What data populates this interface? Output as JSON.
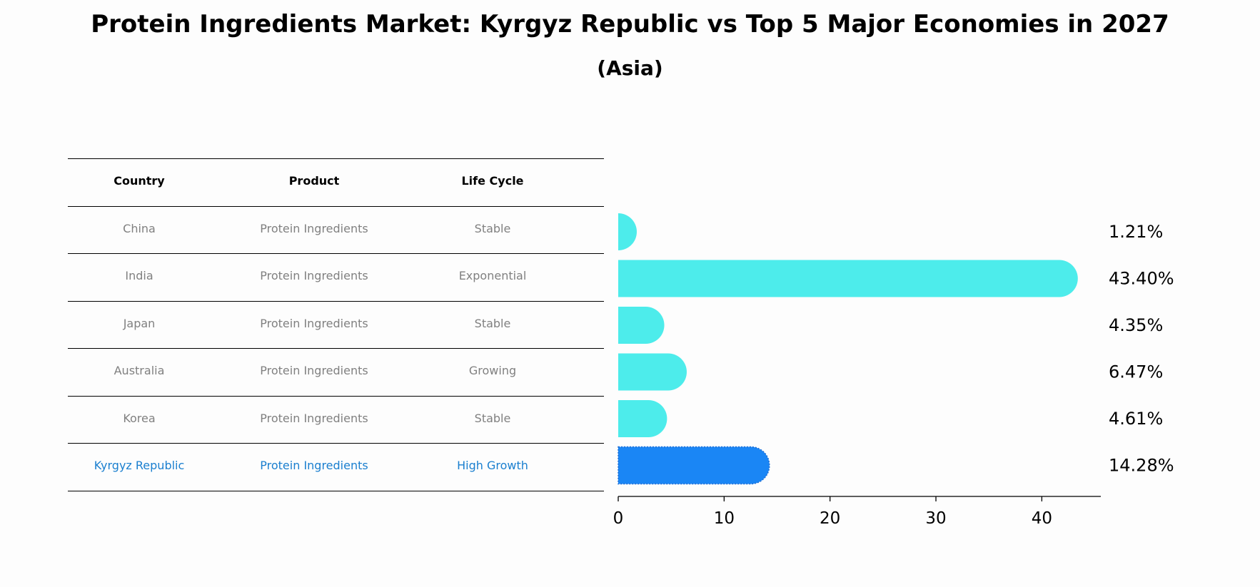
{
  "title": "Protein Ingredients Market: Kyrgyz Republic vs Top 5 Major Economies in 2027",
  "subtitle": "(Asia)",
  "table": {
    "headers": [
      "Country",
      "Product",
      "Life Cycle"
    ],
    "rows": [
      [
        "China",
        "Protein Ingredients",
        "Stable"
      ],
      [
        "India",
        "Protein Ingredients",
        "Exponential"
      ],
      [
        "Japan",
        "Protein Ingredients",
        "Stable"
      ],
      [
        "Australia",
        "Protein Ingredients",
        "Growing"
      ],
      [
        "Korea",
        "Protein Ingredients",
        "Stable"
      ],
      [
        "Kyrgyz Republic",
        "Protein Ingredients",
        "High Growth"
      ]
    ],
    "highlight_row": 5,
    "highlight_color": "#1a7fcf",
    "text_color": "#808080"
  },
  "chart_data": {
    "type": "bar",
    "orientation": "horizontal",
    "categories": [
      "China",
      "India",
      "Japan",
      "Australia",
      "Korea",
      "Kyrgyz Republic"
    ],
    "values": [
      1.21,
      43.4,
      4.35,
      6.47,
      4.61,
      14.28
    ],
    "value_labels": [
      "1.21%",
      "43.40%",
      "4.35%",
      "6.47%",
      "4.61%",
      "14.28%"
    ],
    "xlim": [
      0,
      45.57
    ],
    "xticks": [
      0,
      10,
      20,
      30,
      40
    ],
    "colors": {
      "default": "#4deceb",
      "highlight": "#1a86f5"
    },
    "highlight_index": 5,
    "bar_style": "rounded-end"
  }
}
